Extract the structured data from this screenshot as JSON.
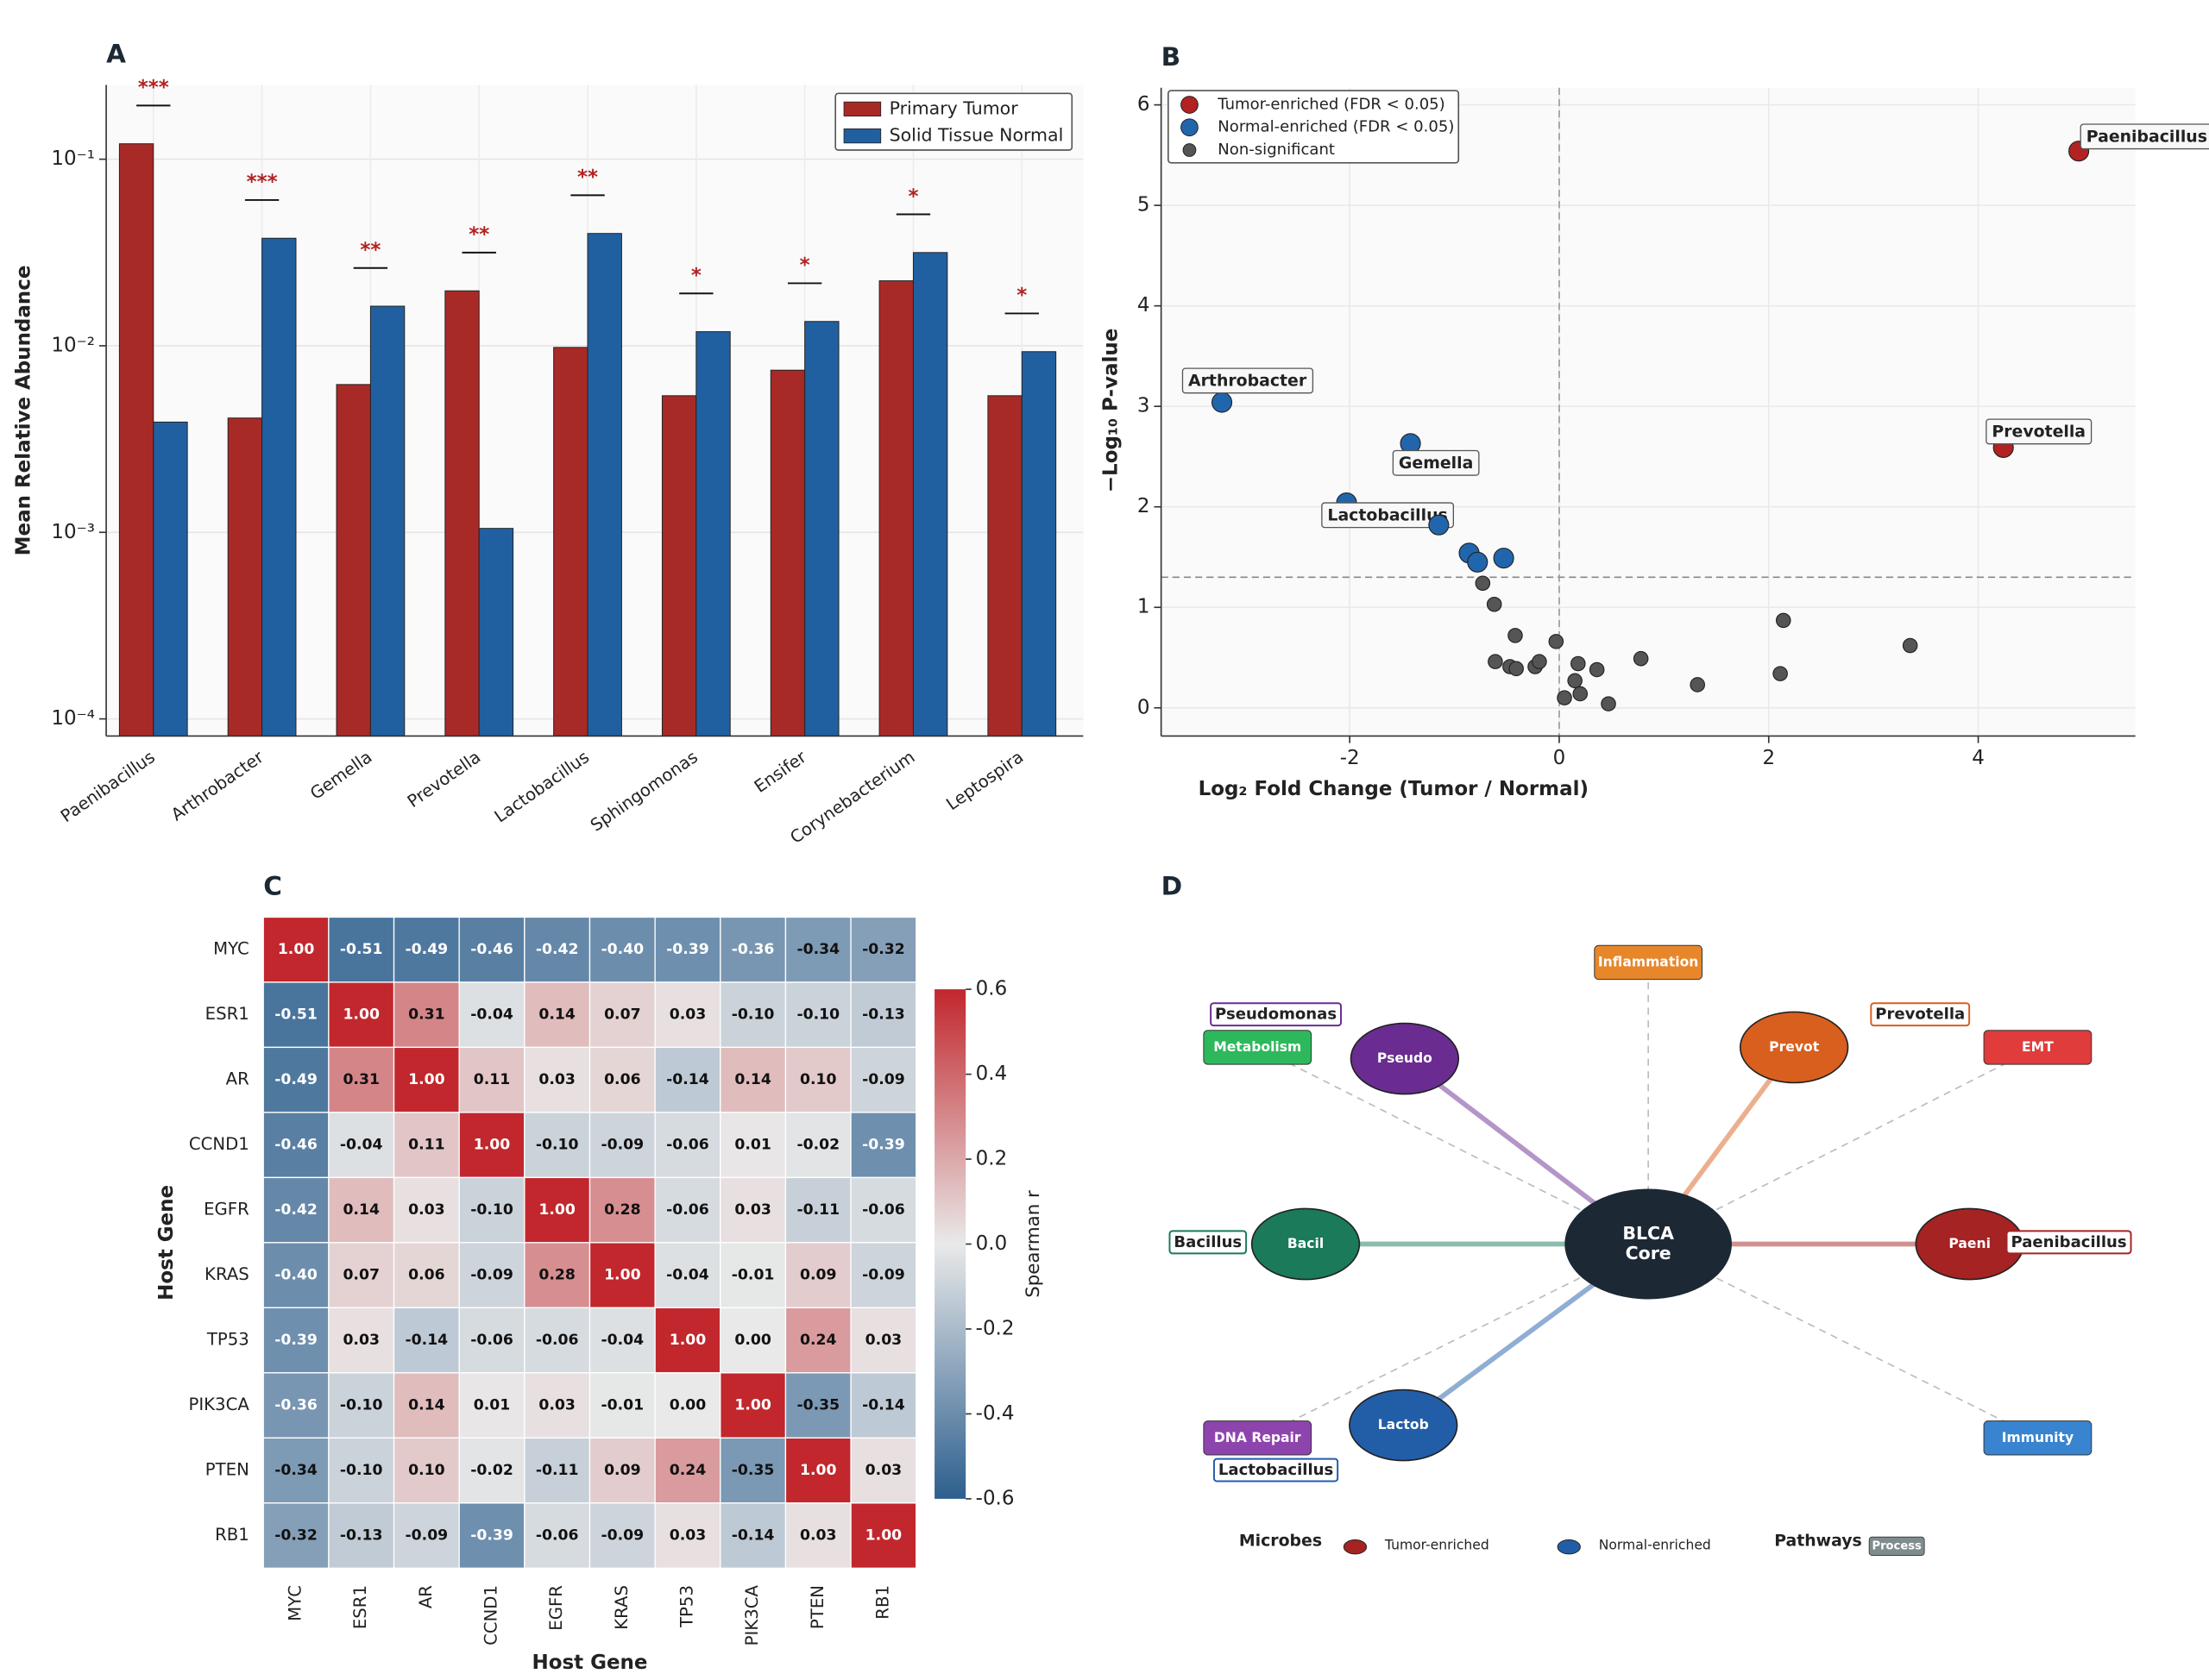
{
  "chart_data": [
    {
      "type": "bar",
      "panel": "A",
      "ylabel": "Mean Relative Abundance",
      "log_scale": true,
      "grid": true,
      "legend": "upper right",
      "categories": [
        "Paenibacillus",
        "Arthrobacter",
        "Gemella",
        "Prevotella",
        "Lactobacillus",
        "Sphingomonas",
        "Ensifer",
        "Corynebacterium",
        "Leptospira"
      ],
      "series": [
        {
          "name": "Primary Tumor",
          "color": "#a82a27",
          "values": [
            0.121,
            0.0041,
            0.0062,
            0.0197,
            0.0098,
            0.0054,
            0.0074,
            0.0223,
            0.0054
          ]
        },
        {
          "name": "Solid Tissue Normal",
          "color": "#2160a0",
          "values": [
            0.0039,
            0.0377,
            0.0163,
            0.00105,
            0.04,
            0.0119,
            0.0135,
            0.0316,
            0.0093
          ]
        }
      ],
      "annotations": [
        "***",
        "***",
        "**",
        "**",
        "**",
        "*",
        "*",
        "*",
        "*"
      ],
      "annotation_color": "#b22222",
      "ylim": [
        8.1e-05,
        0.25
      ],
      "yticks": [
        {
          "value": 0.0001,
          "label": "10⁻⁴"
        },
        {
          "value": 0.001,
          "label": "10⁻³"
        },
        {
          "value": 0.01,
          "label": "10⁻²"
        },
        {
          "value": 0.1,
          "label": "10⁻¹"
        }
      ]
    },
    {
      "type": "scatter",
      "panel": "B",
      "xlabel": "Log₂ Fold Change (Tumor / Normal)",
      "ylabel": "−Log₁₀ P-value",
      "grid": true,
      "legend": "upper left",
      "hline": 1.3,
      "vline": 0,
      "xlim": [
        -3.8,
        5.5
      ],
      "ylim": [
        -0.28,
        6.17
      ],
      "xticks": [
        -2,
        0,
        2,
        4
      ],
      "yticks": [
        0,
        1,
        2,
        3,
        4,
        5,
        6
      ],
      "series": [
        {
          "name": "Tumor-enriched (FDR < 0.05)",
          "color": "#b22222",
          "x": [
            4.96,
            4.24
          ],
          "values": [
            5.54,
            2.59
          ],
          "labels": [
            "Paenibacillus",
            "Prevotella"
          ]
        },
        {
          "name": "Normal-enriched (FDR < 0.05)",
          "color": "#2166ac",
          "x": [
            -3.22,
            -1.42,
            -2.03,
            -1.15,
            -0.86,
            -0.78,
            -0.53
          ],
          "values": [
            3.04,
            2.63,
            2.04,
            1.82,
            1.54,
            1.45,
            1.49
          ],
          "labels": [
            "Arthrobacter",
            "Gemella",
            "Lactobacillus",
            null,
            null,
            null,
            null
          ]
        },
        {
          "name": "Non-significant",
          "color": "#555555",
          "x": [
            -0.73,
            -0.62,
            -0.42,
            -0.03,
            -0.61,
            -0.47,
            -0.41,
            -0.23,
            -0.19,
            0.18,
            0.36,
            0.78,
            0.15,
            0.2,
            0.05,
            0.47,
            1.32,
            2.11,
            2.14,
            3.35
          ],
          "values": [
            1.24,
            1.03,
            0.72,
            0.66,
            0.46,
            0.41,
            0.39,
            0.41,
            0.46,
            0.44,
            0.38,
            0.49,
            0.27,
            0.14,
            0.1,
            0.04,
            0.23,
            0.34,
            0.87,
            0.62
          ]
        }
      ]
    },
    {
      "type": "heatmap",
      "panel": "C",
      "xlabel": "Host Gene",
      "ylabel": "Host Gene",
      "colorbar_label": "Spearman r",
      "categories": [
        "MYC",
        "ESR1",
        "AR",
        "CCND1",
        "EGFR",
        "KRAS",
        "TP53",
        "PIK3CA",
        "PTEN",
        "RB1"
      ],
      "colors": [
        "#2d5f8e",
        "#e9e9e9",
        "#c1272d"
      ],
      "clim": [
        -0.6,
        0.6
      ],
      "cticks": [
        0.6,
        0.4,
        0.2,
        {
          "value": 0,
          "label": "0.0"
        },
        -0.2,
        -0.4,
        -0.6
      ],
      "values": [
        [
          1.0,
          -0.51,
          -0.49,
          -0.46,
          -0.42,
          -0.4,
          -0.39,
          -0.36,
          -0.34,
          -0.32
        ],
        [
          -0.51,
          1.0,
          0.31,
          -0.04,
          0.14,
          0.07,
          0.03,
          -0.1,
          -0.1,
          -0.13
        ],
        [
          -0.49,
          0.31,
          1.0,
          0.11,
          0.03,
          0.06,
          -0.14,
          0.14,
          0.1,
          -0.09
        ],
        [
          -0.46,
          -0.04,
          0.11,
          1.0,
          -0.1,
          -0.09,
          -0.06,
          0.01,
          -0.02,
          -0.39
        ],
        [
          -0.42,
          0.14,
          0.03,
          -0.1,
          1.0,
          0.28,
          -0.06,
          0.03,
          -0.11,
          -0.06
        ],
        [
          -0.4,
          0.07,
          0.06,
          -0.09,
          0.28,
          1.0,
          -0.04,
          -0.01,
          0.09,
          -0.09
        ],
        [
          -0.39,
          0.03,
          -0.14,
          -0.06,
          -0.06,
          -0.04,
          1.0,
          0.0,
          0.24,
          0.03
        ],
        [
          -0.36,
          -0.1,
          0.14,
          0.01,
          0.03,
          -0.01,
          0.0,
          1.0,
          -0.35,
          -0.14
        ],
        [
          -0.34,
          -0.1,
          0.1,
          -0.02,
          -0.11,
          0.09,
          0.24,
          -0.35,
          1.0,
          0.03
        ],
        [
          -0.32,
          -0.13,
          -0.09,
          -0.39,
          -0.06,
          -0.09,
          0.03,
          -0.14,
          0.03,
          1.0
        ]
      ],
      "value_labels": [
        [
          "1.00",
          "-0.51",
          "-0.49",
          "-0.46",
          "-0.42",
          "-0.40",
          "-0.39",
          "-0.36",
          "-0.34",
          "-0.32"
        ],
        [
          "-0.51",
          "1.00",
          "0.31",
          "-0.04",
          "0.14",
          "0.07",
          "0.03",
          "-0.10",
          "-0.10",
          "-0.13"
        ],
        [
          "-0.49",
          "0.31",
          "1.00",
          "0.11",
          "0.03",
          "0.06",
          "-0.14",
          "0.14",
          "0.10",
          "-0.09"
        ],
        [
          "-0.46",
          "-0.04",
          "0.11",
          "1.00",
          "-0.10",
          "-0.09",
          "-0.06",
          "0.01",
          "-0.02",
          "-0.39"
        ],
        [
          "-0.42",
          "0.14",
          "0.03",
          "-0.10",
          "1.00",
          "0.28",
          "-0.06",
          "0.03",
          "-0.11",
          "-0.06"
        ],
        [
          "-0.40",
          "0.07",
          "0.06",
          "-0.09",
          "0.28",
          "1.00",
          "-0.04",
          "-0.01",
          "0.09",
          "-0.09"
        ],
        [
          "-0.39",
          "0.03",
          "-0.14",
          "-0.06",
          "-0.06",
          "-0.04",
          "1.00",
          "0.00",
          "0.24",
          "0.03"
        ],
        [
          "-0.36",
          "-0.10",
          "0.14",
          "0.01",
          "0.03",
          "-0.01",
          "0.00",
          "1.00",
          "-0.35",
          "-0.14"
        ],
        [
          "-0.34",
          "-0.10",
          "0.10",
          "-0.02",
          "-0.11",
          "0.09",
          "0.24",
          "-0.35",
          "1.00",
          "0.03"
        ],
        [
          "-0.32",
          "-0.13",
          "-0.09",
          "-0.39",
          "-0.06",
          "-0.09",
          "0.03",
          "-0.14",
          "0.03",
          "1.00"
        ]
      ]
    },
    {
      "type": "network",
      "panel": "D",
      "center_label": [
        "BLCA",
        "Core"
      ],
      "center_color": "#1c2833",
      "microbes": [
        {
          "label": "Pseudomonas",
          "short": "Pseudo",
          "color": "#6a2c91"
        },
        {
          "label": "Prevotella",
          "short": "Prevot",
          "color": "#d95f1e"
        },
        {
          "label": "Bacillus",
          "short": "Bacil",
          "color": "#1a7a5a"
        },
        {
          "label": "Paenibacillus",
          "short": "Paeni",
          "color": "#a52323"
        },
        {
          "label": "Lactobacillus",
          "short": "Lactob",
          "color": "#225ea8"
        }
      ],
      "pathways": [
        {
          "label": "Inflammation",
          "color": "#e8862a"
        },
        {
          "label": "EMT",
          "color": "#e03c3c"
        },
        {
          "label": "Immunity",
          "color": "#3884d0"
        },
        {
          "label": "DNA Repair",
          "color": "#8e44ad"
        },
        {
          "label": "Metabolism",
          "color": "#2eb85c"
        }
      ],
      "legend": {
        "microbes": "Microbes",
        "tumor": "Tumor-enriched",
        "tumor_color": "#a52323",
        "normal": "Normal-enriched",
        "normal_color": "#225ea8",
        "pathways": "Pathways",
        "process": "Process",
        "process_color": "#7f8c8d"
      }
    }
  ]
}
